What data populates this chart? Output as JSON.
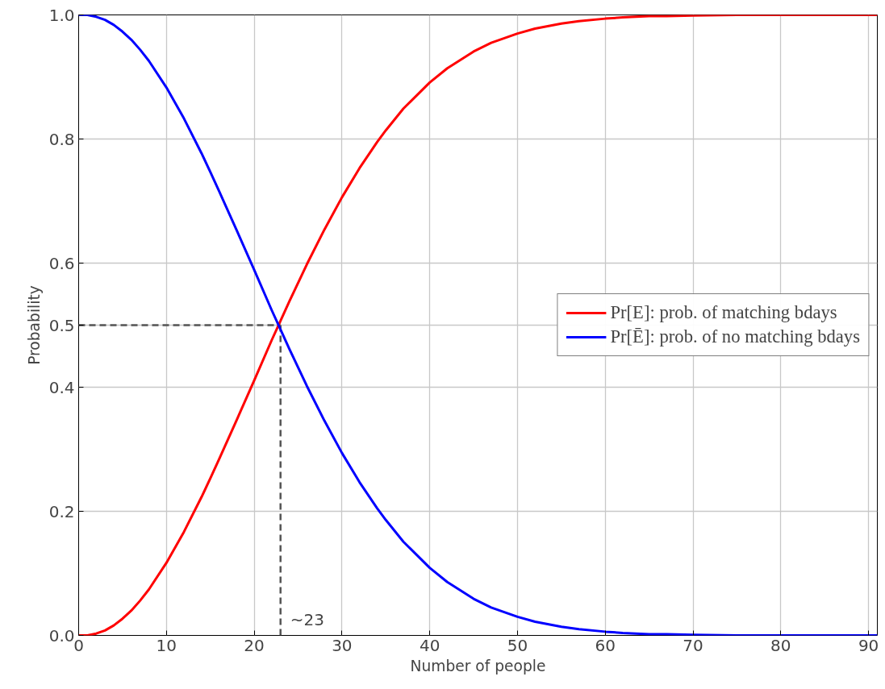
{
  "chart_data": {
    "type": "line",
    "xlabel": "Number of people",
    "ylabel": "Probability",
    "x": [
      0,
      1,
      2,
      3,
      4,
      5,
      6,
      7,
      8,
      10,
      12,
      14,
      15,
      16,
      18,
      20,
      22,
      23,
      24,
      26,
      28,
      30,
      32,
      34,
      35,
      37,
      40,
      42,
      45,
      47,
      50,
      52,
      55,
      57,
      60,
      62,
      65,
      67,
      70,
      75,
      80,
      85,
      91
    ],
    "series": [
      {
        "name": "Pr[E]: prob. of matching bdays",
        "color": "#ff0000",
        "values": [
          0,
          0,
          0.003,
          0.008,
          0.016,
          0.027,
          0.04,
          0.056,
          0.074,
          0.117,
          0.167,
          0.223,
          0.253,
          0.284,
          0.347,
          0.411,
          0.476,
          0.507,
          0.538,
          0.598,
          0.654,
          0.706,
          0.753,
          0.795,
          0.814,
          0.849,
          0.891,
          0.914,
          0.941,
          0.955,
          0.97,
          0.978,
          0.986,
          0.99,
          0.994,
          0.996,
          0.998,
          0.998,
          0.999,
          1,
          1,
          1,
          1
        ]
      },
      {
        "name": "Pr[Ē]: prob. of no matching bdays",
        "color": "#0000ff",
        "values": [
          1,
          1,
          0.997,
          0.992,
          0.984,
          0.973,
          0.96,
          0.944,
          0.926,
          0.883,
          0.833,
          0.777,
          0.747,
          0.716,
          0.653,
          0.589,
          0.524,
          0.493,
          0.462,
          0.402,
          0.346,
          0.294,
          0.247,
          0.205,
          0.186,
          0.151,
          0.109,
          0.086,
          0.059,
          0.045,
          0.03,
          0.022,
          0.014,
          0.01,
          0.006,
          0.004,
          0.002,
          0.002,
          0.001,
          0,
          0,
          0,
          0
        ]
      }
    ],
    "xlim": [
      0,
      91
    ],
    "xticks": [
      0,
      10,
      20,
      30,
      40,
      50,
      60,
      70,
      80,
      90
    ],
    "ylim": [
      0,
      1
    ],
    "yticks": [
      {
        "value": 0,
        "label": "0.0"
      },
      0.2,
      0.4,
      0.5,
      0.6,
      0.8,
      {
        "value": 1,
        "label": "1.0"
      }
    ],
    "ref_lines": [
      {
        "axis": "y",
        "value": 0.5,
        "color": "#555555",
        "line_style": "dashed"
      },
      {
        "axis": "x",
        "value": 23,
        "label": "~23",
        "color": "#555555",
        "line_style": "dashed"
      }
    ],
    "grid": true,
    "legend": "right"
  }
}
